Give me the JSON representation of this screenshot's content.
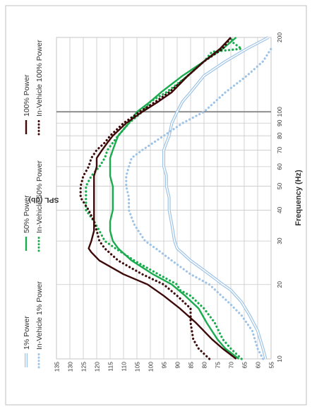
{
  "chart_data": {
    "type": "line",
    "orientation": "rotated-90",
    "xlabel": "Frequency (Hz)",
    "ylabel": "SPL (db)",
    "x_scale": "log",
    "xlim": [
      10,
      200
    ],
    "ylim": [
      55,
      135
    ],
    "x_ticks": [
      "10",
      "20",
      "30",
      "40",
      "50",
      "60",
      "70",
      "80",
      "90",
      "100",
      "200"
    ],
    "y_ticks": [
      "55",
      "60",
      "65",
      "70",
      "75",
      "80",
      "85",
      "90",
      "95",
      "100",
      "105",
      "110",
      "115",
      "120",
      "125",
      "130",
      "135"
    ],
    "grid": true,
    "legend_position": "left-rotated",
    "series": [
      {
        "name": "1% Power",
        "color": "#9DC3E6",
        "style": "double",
        "x": [
          10,
          11,
          13,
          15,
          17,
          19,
          20,
          22,
          25,
          28,
          30,
          35,
          40,
          45,
          50,
          55,
          60,
          65,
          70,
          75,
          80,
          90,
          100,
          110,
          120,
          140,
          160,
          180,
          200
        ],
        "y": [
          57,
          58,
          60,
          63,
          66,
          70,
          73,
          78,
          85,
          90,
          91,
          92,
          93,
          93,
          94,
          94,
          95,
          95,
          95,
          94,
          93,
          92,
          90,
          88,
          85,
          80,
          72,
          64,
          56
        ]
      },
      {
        "name": "In-Vehicle 1% Power",
        "color": "#9DC3E6",
        "style": "dotted",
        "x": [
          10,
          11,
          13,
          15,
          17,
          20,
          22,
          25,
          28,
          30,
          35,
          40,
          45,
          50,
          55,
          60,
          65,
          70,
          80,
          90,
          100,
          120,
          140,
          160,
          180
        ],
        "y": [
          58,
          60,
          62,
          66,
          71,
          78,
          85,
          92,
          98,
          102,
          106,
          108,
          108,
          109,
          109,
          108,
          107,
          103,
          95,
          88,
          80,
          72,
          64,
          58,
          55
        ]
      },
      {
        "name": "50% Power",
        "color": "#1AAB4E",
        "style": "solid",
        "x": [
          10,
          11,
          12,
          14,
          16,
          18,
          20,
          22,
          25,
          28,
          30,
          33,
          36,
          40,
          45,
          50,
          55,
          60,
          65,
          70,
          75,
          80,
          90,
          100,
          110,
          120,
          140,
          160,
          180,
          200
        ],
        "y": [
          67,
          72,
          75,
          79,
          82,
          87,
          92,
          99,
          107,
          112,
          114,
          115,
          115,
          114,
          114,
          114,
          115,
          115,
          115,
          114,
          113,
          112,
          108,
          105,
          100,
          96,
          88,
          80,
          73,
          68
        ]
      },
      {
        "name": "In-Vehicle 50% Power",
        "color": "#1AAB4E",
        "style": "dotted",
        "x": [
          10,
          11,
          12,
          14,
          16,
          18,
          19,
          20,
          22,
          25,
          28,
          30,
          33,
          36,
          40,
          45,
          50,
          55,
          60,
          65,
          70,
          75,
          80,
          90,
          100,
          110,
          120,
          140,
          160,
          175,
          180,
          190,
          200
        ],
        "y": [
          66,
          70,
          73,
          76,
          80,
          85,
          89,
          90,
          97,
          106,
          113,
          117,
          119,
          121,
          124,
          124,
          124,
          122,
          119,
          117,
          116,
          114,
          112,
          108,
          103,
          100,
          94,
          86,
          80,
          77,
          66,
          69,
          70
        ]
      },
      {
        "name": "100% Power",
        "color": "#3D0A0A",
        "style": "solid",
        "x": [
          10,
          11,
          12,
          14,
          16,
          18,
          20,
          22,
          25,
          27,
          28,
          30,
          33,
          36,
          40,
          45,
          50,
          55,
          60,
          65,
          70,
          75,
          80,
          90,
          100,
          110,
          120,
          140,
          160,
          180,
          200
        ],
        "y": [
          68,
          73,
          77,
          83,
          89,
          95,
          101,
          110,
          119,
          122,
          123,
          122,
          121,
          121,
          121,
          121,
          121,
          121,
          120,
          120,
          118,
          116,
          114,
          109,
          103,
          97,
          92,
          86,
          80,
          74,
          70
        ]
      },
      {
        "name": "In-Vehicle 100% Power",
        "color": "#3D0A0A",
        "style": "dotted",
        "x": [
          10,
          11,
          12,
          14,
          16,
          18,
          20,
          22,
          25,
          28,
          30,
          33,
          36,
          40,
          45,
          50,
          55,
          60,
          65,
          70,
          75,
          80,
          90,
          100,
          110,
          120,
          140,
          160,
          180,
          200
        ],
        "y": [
          78,
          82,
          84,
          85,
          85,
          90,
          95,
          103,
          112,
          117,
          119,
          120,
          121,
          123,
          126,
          126,
          125,
          123,
          122,
          120,
          117,
          115,
          110,
          104,
          98,
          93,
          86,
          80,
          73,
          70
        ]
      }
    ]
  }
}
